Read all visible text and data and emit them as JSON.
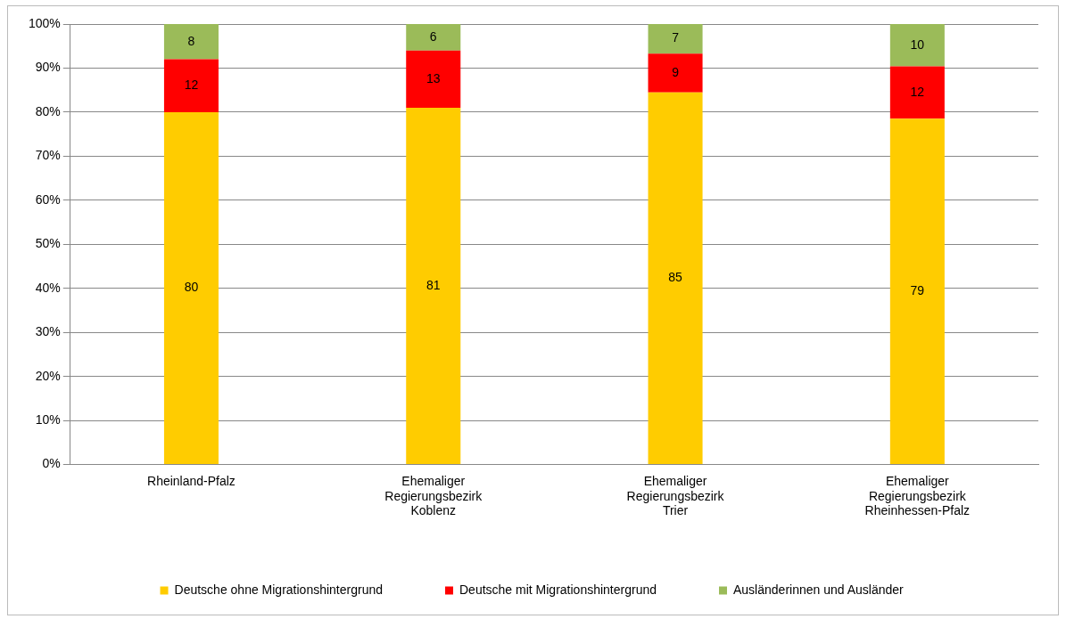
{
  "chart_data": {
    "type": "bar",
    "stacked": true,
    "categories": [
      "Rheinland-Pfalz",
      "Ehemaliger Regierungsbezirk Koblenz",
      "Ehemaliger Regierungsbezirk Trier",
      "Ehemaliger Regierungsbezirk Rheinhessen-Pfalz"
    ],
    "series": [
      {
        "name": "Deutsche ohne Migrationshintergrund",
        "color": "#ffcc00",
        "values": [
          80,
          81,
          84.5,
          78.5
        ],
        "value_labels": [
          "80",
          "81",
          "85",
          "79"
        ]
      },
      {
        "name": "Deutsche mit Migrationshintergrund",
        "color": "#ff0000",
        "values": [
          12,
          13,
          8.8,
          11.9
        ],
        "value_labels": [
          "12",
          "13",
          "9",
          "12"
        ]
      },
      {
        "name": "Ausländerinnen und Ausländer",
        "color": "#9bbb59",
        "values": [
          8,
          6,
          6.7,
          9.6
        ],
        "value_labels": [
          "8",
          "6",
          "7",
          "10"
        ]
      }
    ],
    "ylim": [
      0,
      100
    ],
    "yticks": [
      {
        "value": 0,
        "label": "0%"
      },
      {
        "value": 10,
        "label": "10%"
      },
      {
        "value": 20,
        "label": "20%"
      },
      {
        "value": 30,
        "label": "30%"
      },
      {
        "value": 40,
        "label": "40%"
      },
      {
        "value": 50,
        "label": "50%"
      },
      {
        "value": 60,
        "label": "60%"
      },
      {
        "value": 70,
        "label": "70%"
      },
      {
        "value": 80,
        "label": "80%"
      },
      {
        "value": 90,
        "label": "90%"
      },
      {
        "value": 100,
        "label": "100%"
      }
    ],
    "grid": "y",
    "legend": "bottom"
  }
}
